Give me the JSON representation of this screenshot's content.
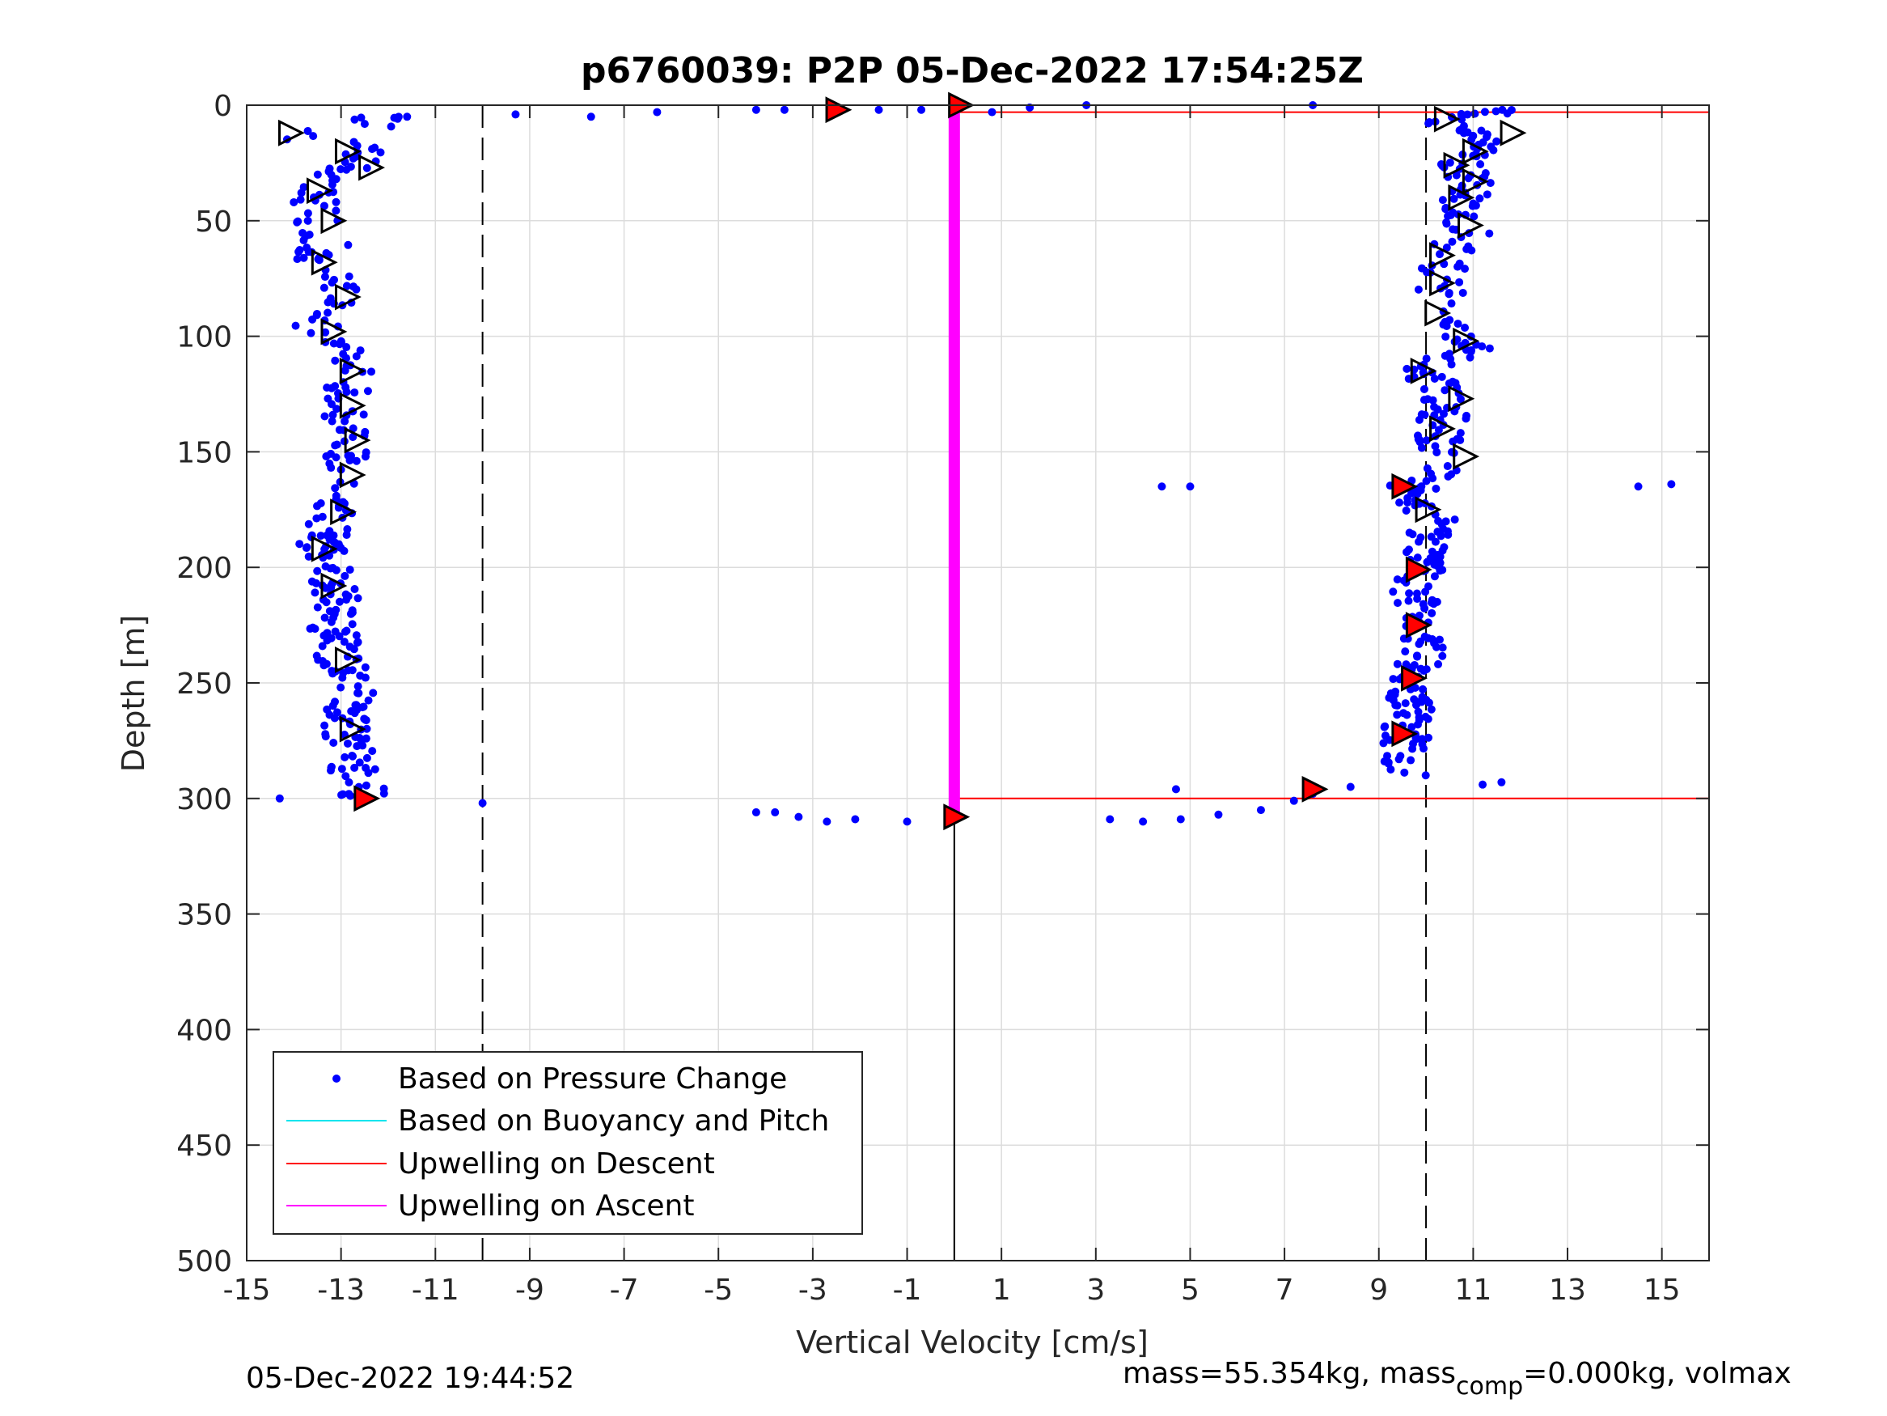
{
  "chart_data": {
    "type": "scatter",
    "title": "p6760039: P2P 05-Dec-2022 17:54:25Z",
    "xlabel": "Vertical Velocity [cm/s]",
    "ylabel": "Depth [m]",
    "xlim": [
      -15,
      16
    ],
    "ylim": [
      0,
      500
    ],
    "y_reversed": true,
    "grid": true,
    "x_ticks": [
      -15,
      -13,
      -11,
      -9,
      -7,
      -5,
      -3,
      -1,
      1,
      3,
      5,
      7,
      9,
      11,
      13,
      15
    ],
    "y_ticks": [
      0,
      50,
      100,
      150,
      200,
      250,
      300,
      350,
      400,
      450,
      500
    ],
    "legend_position": "bottom-left",
    "legend": [
      {
        "name": "Based on Pressure Change",
        "color": "#0000ff",
        "style": "dot"
      },
      {
        "name": "Based on Buoyancy and Pitch",
        "color": "#00e5ee",
        "style": "line"
      },
      {
        "name": "Upwelling on Descent",
        "color": "#ff0000",
        "style": "line"
      },
      {
        "name": "Upwelling on Ascent",
        "color": "#ff00ff",
        "style": "line"
      }
    ],
    "reference_lines": {
      "dashed_x": [
        -10,
        10
      ],
      "solid_x": 0,
      "solid_x_depth_range": [
        300,
        500
      ]
    },
    "series": [
      {
        "name": "Based on Pressure Change",
        "color": "#0000ff",
        "descent_profile": [
          [
            -14.2,
            10
          ],
          [
            -13.8,
            15
          ],
          [
            -12.2,
            5
          ],
          [
            -12.5,
            25
          ],
          [
            -13.0,
            30
          ],
          [
            -13.6,
            35
          ],
          [
            -13.5,
            50
          ],
          [
            -13.3,
            60
          ],
          [
            -13.6,
            68
          ],
          [
            -13.2,
            75
          ],
          [
            -12.9,
            85
          ],
          [
            -13.5,
            95
          ],
          [
            -13.4,
            100
          ],
          [
            -12.7,
            110
          ],
          [
            -12.8,
            120
          ],
          [
            -12.9,
            130
          ],
          [
            -12.8,
            145
          ],
          [
            -12.9,
            160
          ],
          [
            -13.2,
            175
          ],
          [
            -13.4,
            190
          ],
          [
            -13.1,
            210
          ],
          [
            -13.2,
            225
          ],
          [
            -13.0,
            240
          ],
          [
            -12.8,
            255
          ],
          [
            -12.9,
            270
          ],
          [
            -12.8,
            285
          ],
          [
            -12.5,
            300
          ]
        ],
        "ascent_profile": [
          [
            11.6,
            2
          ],
          [
            10.3,
            8
          ],
          [
            11.3,
            15
          ],
          [
            10.7,
            25
          ],
          [
            11.1,
            35
          ],
          [
            10.5,
            45
          ],
          [
            10.9,
            55
          ],
          [
            10.4,
            65
          ],
          [
            10.3,
            80
          ],
          [
            10.5,
            95
          ],
          [
            10.9,
            105
          ],
          [
            10.0,
            115
          ],
          [
            10.4,
            130
          ],
          [
            10.3,
            145
          ],
          [
            10.6,
            155
          ],
          [
            9.7,
            165
          ],
          [
            10.2,
            180
          ],
          [
            10.0,
            195
          ],
          [
            9.8,
            205
          ],
          [
            9.8,
            225
          ],
          [
            9.9,
            240
          ],
          [
            9.7,
            255
          ],
          [
            9.6,
            270
          ],
          [
            9.5,
            285
          ]
        ],
        "transition_points": [
          [
            -14.3,
            300
          ],
          [
            -10.0,
            302
          ],
          [
            -4.2,
            306
          ],
          [
            -3.8,
            306
          ],
          [
            -3.3,
            308
          ],
          [
            -2.7,
            310
          ],
          [
            -2.1,
            309
          ],
          [
            -1.0,
            310
          ],
          [
            0.0,
            309
          ],
          [
            3.3,
            309
          ],
          [
            4.0,
            310
          ],
          [
            4.8,
            309
          ],
          [
            5.6,
            307
          ],
          [
            6.5,
            305
          ],
          [
            7.2,
            301
          ],
          [
            7.6,
            298
          ],
          [
            8.4,
            295
          ],
          [
            4.7,
            296
          ],
          [
            -11.6,
            5
          ],
          [
            -9.3,
            4
          ],
          [
            -7.7,
            5
          ],
          [
            -6.3,
            3
          ],
          [
            -4.2,
            2
          ],
          [
            -3.6,
            2
          ],
          [
            -2.5,
            3
          ],
          [
            -1.6,
            2
          ],
          [
            -0.7,
            2
          ],
          [
            0.0,
            1
          ],
          [
            0.8,
            3
          ],
          [
            1.6,
            1
          ],
          [
            2.8,
            0
          ],
          [
            7.6,
            0
          ],
          [
            4.4,
            165
          ],
          [
            5.0,
            165
          ],
          [
            14.5,
            165
          ],
          [
            15.2,
            164
          ],
          [
            11.2,
            294
          ],
          [
            11.6,
            293
          ]
        ]
      }
    ],
    "markers": {
      "open_triangles": [
        [
          -14.1,
          12
        ],
        [
          -12.9,
          20
        ],
        [
          -12.4,
          27
        ],
        [
          -13.5,
          37
        ],
        [
          -13.2,
          50
        ],
        [
          -13.4,
          68
        ],
        [
          -12.9,
          83
        ],
        [
          -13.2,
          98
        ],
        [
          -12.8,
          115
        ],
        [
          -12.8,
          130
        ],
        [
          -12.7,
          145
        ],
        [
          -12.8,
          160
        ],
        [
          -13.0,
          176
        ],
        [
          -13.4,
          192
        ],
        [
          -13.2,
          208
        ],
        [
          -12.9,
          240
        ],
        [
          -12.8,
          270
        ],
        [
          10.4,
          6
        ],
        [
          11.8,
          12
        ],
        [
          11.0,
          20
        ],
        [
          10.6,
          26
        ],
        [
          11.0,
          33
        ],
        [
          10.7,
          40
        ],
        [
          10.9,
          52
        ],
        [
          10.3,
          65
        ],
        [
          10.3,
          77
        ],
        [
          10.2,
          90
        ],
        [
          10.8,
          102
        ],
        [
          9.9,
          115
        ],
        [
          10.7,
          127
        ],
        [
          10.3,
          140
        ],
        [
          10.8,
          152
        ],
        [
          10.0,
          175
        ]
      ],
      "red_triangles": [
        [
          -2.5,
          2
        ],
        [
          0.1,
          0
        ],
        [
          9.5,
          165
        ],
        [
          9.8,
          201
        ],
        [
          9.8,
          225
        ],
        [
          9.7,
          248
        ],
        [
          9.5,
          272
        ],
        [
          7.6,
          296
        ],
        [
          0.0,
          308
        ],
        [
          -12.5,
          300
        ]
      ]
    },
    "upwelling_lines": {
      "descent": [
        [
          0,
          3
        ],
        [
          16,
          3
        ],
        [
          0,
          300
        ],
        [
          16,
          300
        ]
      ],
      "ascent": {
        "x": 0,
        "depth_range": [
          0,
          308
        ]
      }
    }
  },
  "footer": {
    "timestamp": "05-Dec-2022 19:44:52",
    "mass_text_1": "mass=55.354kg, mass",
    "mass_subscript": "comp",
    "mass_text_2": "=0.000kg, volmax"
  }
}
